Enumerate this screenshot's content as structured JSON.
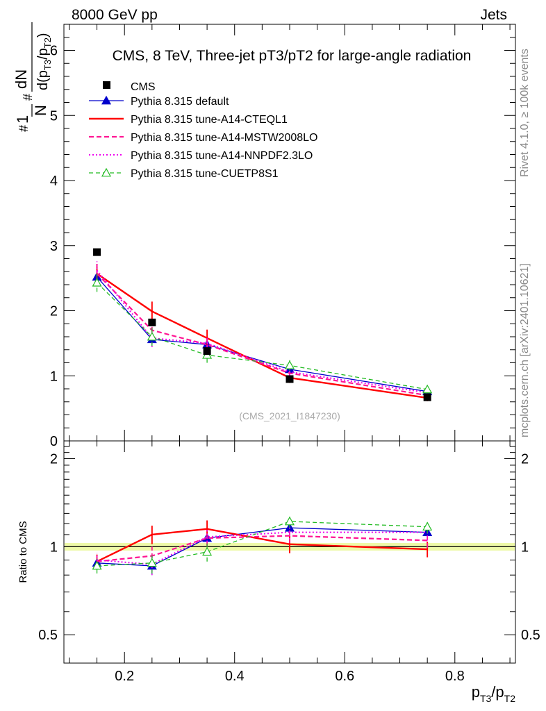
{
  "header": {
    "left": "8000 GeV pp",
    "right": "Jets"
  },
  "side_text": {
    "rivet": "Rivet 4.1.0, ≥ 100k events",
    "mcplots": "mcplots.cern.ch [arXiv:2401.10621]"
  },
  "chart_data": {
    "type": "line",
    "title": "CMS, 8 TeV, Three-jet pT3/pT2 for large-angle radiation",
    "watermark": "(CMS_2021_I1847230)",
    "xlabel": "pT3/pT2",
    "ylabel": "1/N dN/d(pT3/pT2)",
    "ratio_ylabel": "Ratio to CMS",
    "xlim": [
      0.09,
      0.91
    ],
    "ylim": [
      0,
      6.4
    ],
    "ratio_ylim": [
      0.4,
      2.3
    ],
    "x_ticks": [
      "0.2",
      "0.4",
      "0.6",
      "0.8"
    ],
    "y_ticks": [
      "0",
      "1",
      "2",
      "3",
      "4",
      "5",
      "6"
    ],
    "ratio_ticks": [
      "0.5",
      "1",
      "2"
    ],
    "x": [
      0.15,
      0.25,
      0.35,
      0.5,
      0.75
    ],
    "reference": {
      "name": "CMS",
      "values": [
        2.9,
        1.82,
        1.38,
        0.95,
        0.67
      ],
      "errors": [
        0.02,
        0.02,
        0.02,
        0.02,
        0.02
      ],
      "band": [
        0.03,
        0.03,
        0.03,
        0.03,
        0.03
      ],
      "color": "#000000"
    },
    "series": [
      {
        "name": "Pythia 8.315 default",
        "values": [
          2.52,
          1.56,
          1.48,
          1.1,
          0.76
        ],
        "errors": [
          0.12,
          0.12,
          0.1,
          0.06,
          0.04
        ],
        "color": "#0000cc",
        "dash": "",
        "width": 1.3,
        "marker": "triangle-filled",
        "ratio": [
          0.88,
          0.86,
          1.07,
          1.16,
          1.12
        ],
        "ratio_err": [
          0.04,
          0.06,
          0.06,
          0.05,
          0.05
        ]
      },
      {
        "name": "Pythia 8.315 tune-A14-CTEQL1",
        "values": [
          2.57,
          1.99,
          1.58,
          0.97,
          0.66
        ],
        "errors": [
          0.15,
          0.15,
          0.13,
          0.08,
          0.05
        ],
        "color": "#ff0000",
        "dash": "",
        "width": 2.4,
        "marker": "none",
        "ratio": [
          0.89,
          1.1,
          1.15,
          1.02,
          0.98
        ],
        "ratio_err": [
          0.05,
          0.08,
          0.08,
          0.07,
          0.06
        ]
      },
      {
        "name": "Pythia 8.315 tune-A14-MSTW2008LO",
        "values": [
          2.57,
          1.7,
          1.48,
          1.04,
          0.7
        ],
        "errors": [
          0.14,
          0.14,
          0.1,
          0.06,
          0.05
        ],
        "color": "#ff1493",
        "dash": "7,4",
        "width": 2.2,
        "marker": "none",
        "ratio": [
          0.89,
          0.93,
          1.07,
          1.09,
          1.05
        ],
        "ratio_err": [
          0.05,
          0.07,
          0.07,
          0.06,
          0.06
        ]
      },
      {
        "name": "Pythia 8.315 tune-A14-NNPDF2.3LO",
        "values": [
          2.62,
          1.58,
          1.5,
          1.06,
          0.74
        ],
        "errors": [
          0.14,
          0.14,
          0.1,
          0.06,
          0.05
        ],
        "color": "#ee00ee",
        "dash": "2,3",
        "width": 2,
        "marker": "none",
        "ratio": [
          0.9,
          0.87,
          1.08,
          1.12,
          1.12
        ],
        "ratio_err": [
          0.05,
          0.07,
          0.07,
          0.06,
          0.07
        ]
      },
      {
        "name": "Pythia 8.315 tune-CUETP8S1",
        "values": [
          2.43,
          1.6,
          1.32,
          1.16,
          0.79
        ],
        "errors": [
          0.14,
          0.14,
          0.12,
          0.08,
          0.05
        ],
        "color": "#22bb22",
        "dash": "6,4",
        "width": 1.3,
        "marker": "triangle-open",
        "ratio": [
          0.86,
          0.88,
          0.96,
          1.22,
          1.17
        ],
        "ratio_err": [
          0.05,
          0.07,
          0.07,
          0.06,
          0.06
        ]
      }
    ]
  }
}
